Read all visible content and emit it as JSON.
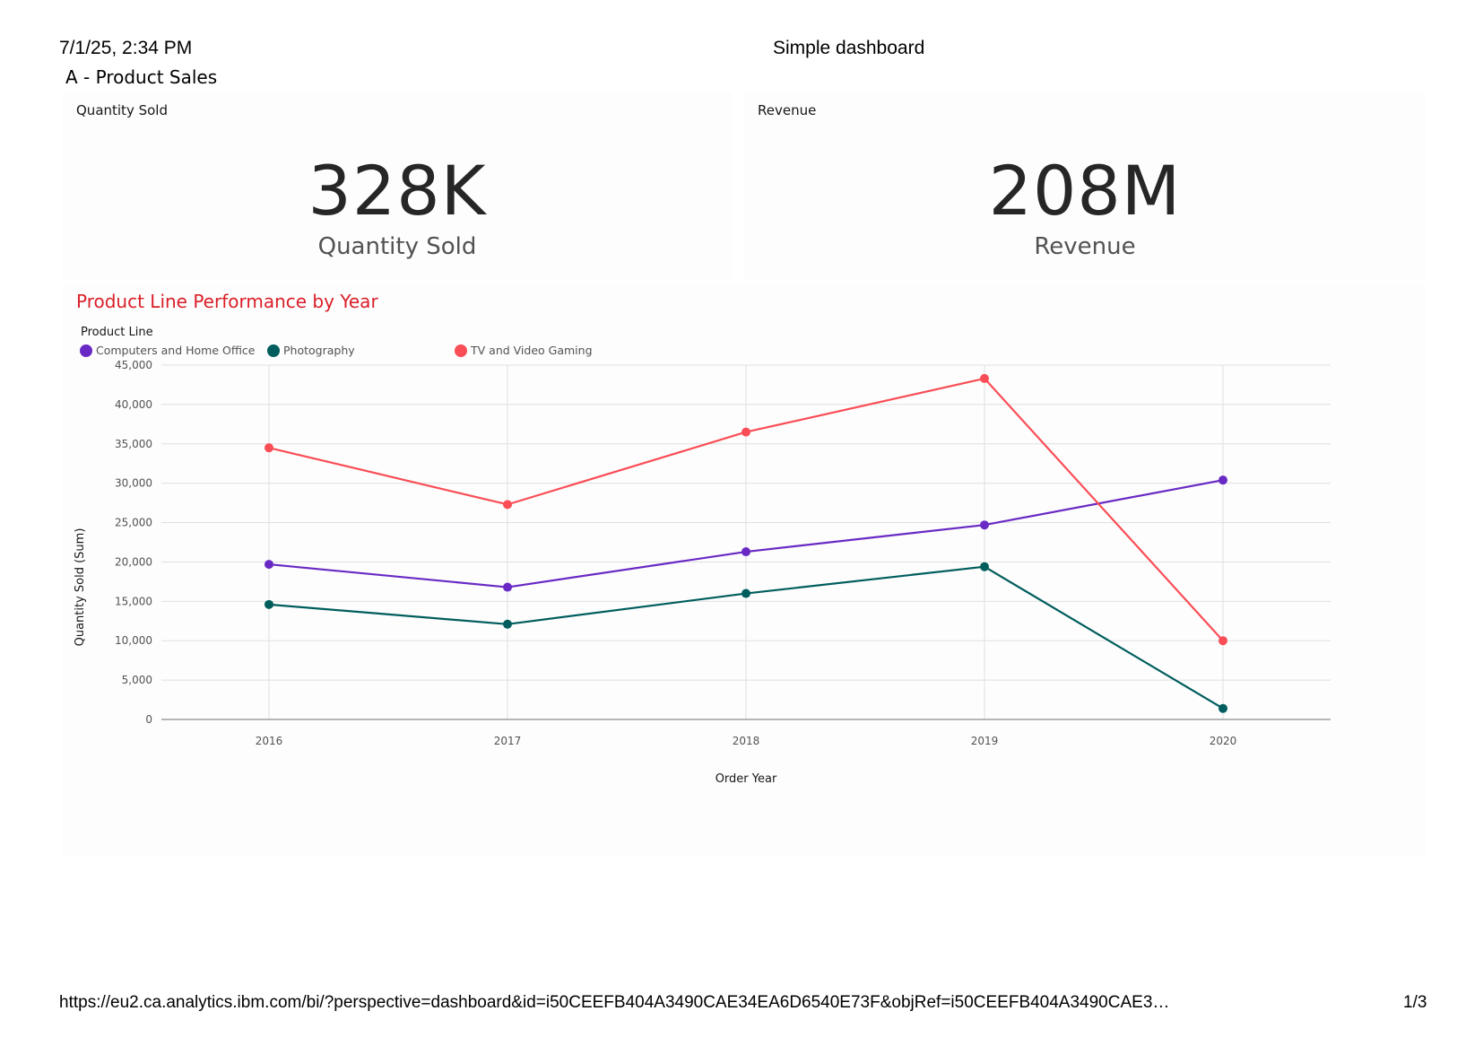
{
  "print_header": {
    "timestamp": "7/1/25, 2:34 PM",
    "doc_title": "Simple dashboard",
    "tab_name": "A - Product Sales"
  },
  "kpis": [
    {
      "title": "Quantity Sold",
      "value": "328K",
      "label": "Quantity Sold"
    },
    {
      "title": "Revenue",
      "value": "208M",
      "label": "Revenue"
    }
  ],
  "chart": {
    "legend_title": "Product Line"
  },
  "chart_data": {
    "type": "line",
    "title": "Product Line Performance by Year",
    "xlabel": "Order Year",
    "ylabel": "Quantity Sold (Sum)",
    "categories": [
      "2016",
      "2017",
      "2018",
      "2019",
      "2020"
    ],
    "ylim": [
      0,
      45000
    ],
    "yticks": [
      0,
      5000,
      10000,
      15000,
      20000,
      25000,
      30000,
      35000,
      40000,
      45000
    ],
    "ytick_labels": [
      "0",
      "5,000",
      "10,000",
      "15,000",
      "20,000",
      "25,000",
      "30,000",
      "35,000",
      "40,000",
      "45,000"
    ],
    "grid": true,
    "legend_position": "top-left",
    "series": [
      {
        "name": "Computers and Home Office",
        "color": "#6929c4",
        "values": [
          19700,
          16800,
          21300,
          24700,
          30400
        ]
      },
      {
        "name": "Photography",
        "color": "#005d5d",
        "values": [
          14600,
          12100,
          16000,
          19400,
          1400
        ]
      },
      {
        "name": "TV and Video Gaming",
        "color": "#fa4d56",
        "values": [
          34500,
          27300,
          36500,
          43300,
          10000
        ]
      }
    ]
  },
  "print_footer": {
    "url": "https://eu2.ca.analytics.ibm.com/bi/?perspective=dashboard&id=i50CEEFB404A3490CAE34EA6D6540E73F&objRef=i50CEEFB404A3490CAE3…",
    "page": "1/3"
  }
}
